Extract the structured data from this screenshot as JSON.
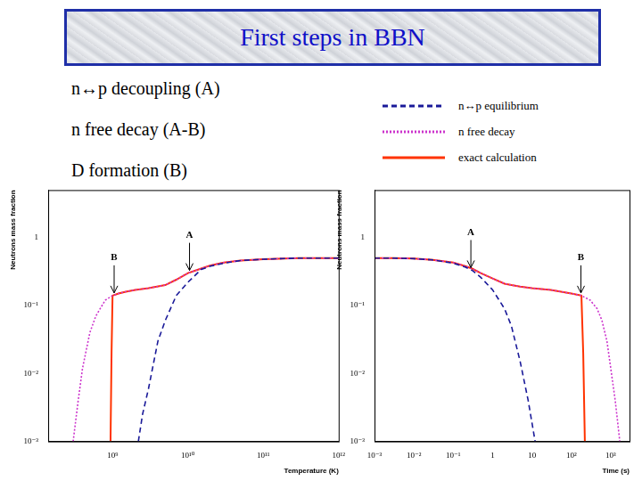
{
  "slide": {
    "title": "First steps in BBN",
    "bullets": [
      "n↔p decoupling (A)",
      "n free decay (A-B)",
      "D formation (B)"
    ]
  },
  "chart_data": [
    {
      "type": "line",
      "x_label": "Temperature (K)",
      "y_label": "Neutrons mass fraction",
      "log": true,
      "grid": false,
      "xlim": [
        140000000,
        1000000000000
      ],
      "xticks": [
        {
          "value": 1000000000,
          "label": "10⁹"
        },
        {
          "value": 10000000000,
          "label": "10¹⁰"
        },
        {
          "value": 100000000000,
          "label": "10¹¹"
        },
        {
          "value": 1000000000000,
          "label": "10¹²"
        }
      ],
      "ylim": [
        0.001,
        5
      ],
      "yticks": [
        {
          "value": 0.001,
          "label": "10⁻³"
        },
        {
          "value": 0.01,
          "label": "10⁻²"
        },
        {
          "value": 0.1,
          "label": "10⁻¹"
        },
        1
      ],
      "series": [
        {
          "name": "n↔p equilibrium",
          "color": "#1a1a99",
          "line_style": "dashed",
          "x": [
            1000000000000,
            300000000000,
            100000000000,
            50000000000,
            30000000000,
            20000000000,
            15000000000,
            10000000000,
            7000000000,
            5000000000,
            4000000000,
            3000000000,
            2500000000,
            2200000000
          ],
          "values": [
            0.5,
            0.5,
            0.48,
            0.46,
            0.42,
            0.38,
            0.34,
            0.22,
            0.14,
            0.06,
            0.03,
            0.006,
            0.0025,
            0.001
          ]
        },
        {
          "name": "n free decay",
          "color": "#cc33cc",
          "line_style": "dotted",
          "x": [
            1000000000000,
            300000000000,
            100000000000,
            50000000000,
            30000000000,
            20000000000,
            15000000000,
            10000000000,
            7000000000,
            5000000000,
            3000000000,
            2000000000,
            1500000000,
            1200000000,
            1000000000,
            800000000,
            600000000,
            500000000,
            400000000,
            350000000,
            300000000
          ],
          "values": [
            0.5,
            0.5,
            0.48,
            0.46,
            0.43,
            0.39,
            0.35,
            0.3,
            0.24,
            0.2,
            0.18,
            0.17,
            0.16,
            0.15,
            0.14,
            0.12,
            0.07,
            0.04,
            0.012,
            0.004,
            0.001
          ]
        },
        {
          "name": "exact calculation",
          "color": "#ff3300",
          "line_style": "solid",
          "x": [
            1000000000000,
            300000000000,
            100000000000,
            50000000000,
            30000000000,
            20000000000,
            15000000000,
            10000000000,
            7000000000,
            5000000000,
            3000000000,
            2000000000,
            1500000000,
            1200000000,
            1000000000,
            970000000,
            940000000
          ],
          "values": [
            0.5,
            0.5,
            0.48,
            0.46,
            0.43,
            0.39,
            0.35,
            0.3,
            0.24,
            0.2,
            0.18,
            0.17,
            0.16,
            0.15,
            0.14,
            0.02,
            0.001
          ]
        }
      ],
      "annotations": [
        {
          "text": "A",
          "x": 10500000000,
          "y": 0.3
        },
        {
          "text": "B",
          "x": 1050000000,
          "y": 0.14
        }
      ]
    },
    {
      "type": "line",
      "x_label": "Time (s)",
      "y_label": "Neutrons mass fraction",
      "log": true,
      "grid": false,
      "xlim": [
        0.001,
        3000
      ],
      "xticks": [
        {
          "value": 0.001,
          "label": "10⁻³"
        },
        {
          "value": 0.01,
          "label": "10⁻²"
        },
        {
          "value": 0.1,
          "label": "10⁻¹"
        },
        1,
        10,
        {
          "value": 100,
          "label": "10²"
        },
        {
          "value": 1000,
          "label": "10³"
        }
      ],
      "ylim": [
        0.001,
        5
      ],
      "yticks": [
        {
          "value": 0.001,
          "label": "10⁻³"
        },
        {
          "value": 0.01,
          "label": "10⁻²"
        },
        {
          "value": 0.1,
          "label": "10⁻¹"
        },
        1
      ],
      "series": [
        {
          "name": "n↔p equilibrium",
          "color": "#1a1a99",
          "line_style": "dashed",
          "x": [
            0.001,
            0.003,
            0.01,
            0.03,
            0.1,
            0.2,
            0.3,
            0.5,
            1,
            2,
            3,
            5,
            8,
            12
          ],
          "values": [
            0.5,
            0.5,
            0.49,
            0.47,
            0.42,
            0.37,
            0.33,
            0.26,
            0.17,
            0.09,
            0.05,
            0.015,
            0.004,
            0.001
          ]
        },
        {
          "name": "n free decay",
          "color": "#cc33cc",
          "line_style": "dotted",
          "x": [
            0.001,
            0.003,
            0.01,
            0.03,
            0.1,
            0.2,
            0.3,
            0.5,
            1,
            2,
            3,
            5,
            10,
            30,
            100,
            180,
            300,
            450,
            600,
            800,
            1000,
            1300,
            1700
          ],
          "values": [
            0.5,
            0.5,
            0.49,
            0.47,
            0.43,
            0.38,
            0.35,
            0.3,
            0.25,
            0.21,
            0.2,
            0.19,
            0.18,
            0.17,
            0.15,
            0.14,
            0.12,
            0.09,
            0.06,
            0.03,
            0.012,
            0.004,
            0.001
          ]
        },
        {
          "name": "exact calculation",
          "color": "#ff3300",
          "line_style": "solid",
          "x": [
            0.001,
            0.003,
            0.01,
            0.03,
            0.1,
            0.2,
            0.3,
            0.5,
            1,
            2,
            3,
            5,
            10,
            30,
            100,
            180,
            200,
            220
          ],
          "values": [
            0.5,
            0.5,
            0.49,
            0.47,
            0.43,
            0.38,
            0.35,
            0.3,
            0.25,
            0.21,
            0.2,
            0.19,
            0.18,
            0.17,
            0.15,
            0.14,
            0.02,
            0.001
          ]
        }
      ],
      "annotations": [
        {
          "text": "A",
          "x": 0.28,
          "y": 0.33
        },
        {
          "text": "B",
          "x": 175,
          "y": 0.14
        }
      ]
    }
  ]
}
